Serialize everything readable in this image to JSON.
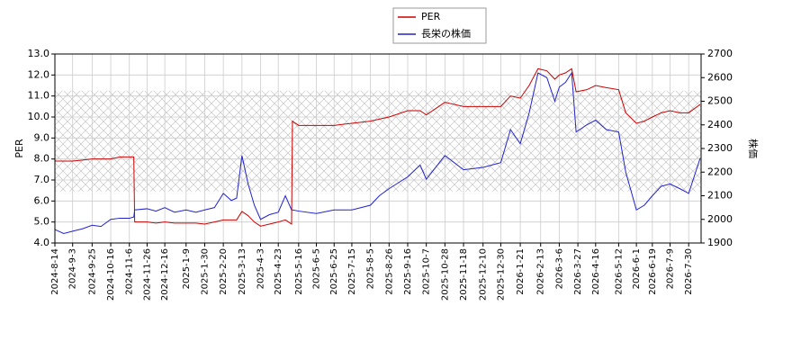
{
  "chart_data": {
    "type": "line",
    "legend": "upper center",
    "grid": true,
    "band": [
      6.45,
      11.25
    ],
    "ylabel": "PER",
    "y2label": "株価",
    "x": [
      "2024-08-14",
      "2024-08-24",
      "2024-09-03",
      "2024-09-14",
      "2024-09-25",
      "2024-10-05",
      "2024-10-16",
      "2024-10-26",
      "2024-11-06",
      "2024-11-11",
      "2024-11-12",
      "2024-11-26",
      "2024-12-06",
      "2024-12-16",
      "2024-12-27",
      "2025-01-09",
      "2025-01-20",
      "2025-01-30",
      "2025-02-10",
      "2025-02-20",
      "2025-03-01",
      "2025-03-07",
      "2025-03-13",
      "2025-03-20",
      "2025-03-27",
      "2025-04-03",
      "2025-04-13",
      "2025-04-23",
      "2025-05-01",
      "2025-05-08",
      "2025-05-09",
      "2025-05-16",
      "2025-06-05",
      "2025-06-25",
      "2025-07-15",
      "2025-08-05",
      "2025-08-15",
      "2025-08-26",
      "2025-09-16",
      "2025-09-30",
      "2025-10-07",
      "2025-10-28",
      "2025-11-18",
      "2025-12-10",
      "2025-12-30",
      "2026-01-10",
      "2026-01-21",
      "2026-01-31",
      "2026-02-10",
      "2026-02-20",
      "2026-03-01",
      "2026-03-06",
      "2026-03-13",
      "2026-03-20",
      "2026-03-25",
      "2026-04-06",
      "2026-04-16",
      "2026-04-28",
      "2026-05-12",
      "2026-05-20",
      "2026-06-01",
      "2026-06-10",
      "2026-06-19",
      "2026-06-29",
      "2026-07-09",
      "2026-07-20",
      "2026-07-30",
      "2026-08-12"
    ],
    "series": [
      {
        "name": "PER",
        "color": "#cc0000",
        "values": [
          7.9,
          7.9,
          7.9,
          7.95,
          8.0,
          8.0,
          8.0,
          8.1,
          8.1,
          8.1,
          5.0,
          5.0,
          4.95,
          5.0,
          4.95,
          4.95,
          4.95,
          4.9,
          5.0,
          5.1,
          5.1,
          5.1,
          5.5,
          5.3,
          5.0,
          4.8,
          4.9,
          5.0,
          5.1,
          4.9,
          9.8,
          9.6,
          9.6,
          9.6,
          9.7,
          9.8,
          9.9,
          10.0,
          10.3,
          10.3,
          10.1,
          10.7,
          10.5,
          10.5,
          10.5,
          11.0,
          10.9,
          11.5,
          12.3,
          12.2,
          11.8,
          12.0,
          12.1,
          12.3,
          11.2,
          11.3,
          11.5,
          11.4,
          11.3,
          10.2,
          9.7,
          9.8,
          10.0,
          10.2,
          10.3,
          10.2,
          10.2,
          10.6
        ]
      },
      {
        "name": "長栄の株価",
        "color": "#2222cc",
        "axis": "y2",
        "values": [
          1957,
          1940,
          1950,
          1960,
          1975,
          1970,
          2000,
          2005,
          2005,
          2010,
          2040,
          2045,
          2035,
          2050,
          2030,
          2040,
          2030,
          2040,
          2050,
          2110,
          2080,
          2090,
          2270,
          2150,
          2060,
          2000,
          2020,
          2030,
          2100,
          2040,
          2040,
          2035,
          2025,
          2040,
          2040,
          2060,
          2100,
          2130,
          2180,
          2230,
          2170,
          2270,
          2210,
          2220,
          2240,
          2380,
          2320,
          2450,
          2620,
          2600,
          2500,
          2560,
          2580,
          2620,
          2370,
          2400,
          2420,
          2380,
          2370,
          2200,
          2040,
          2060,
          2100,
          2140,
          2150,
          2130,
          2110,
          2260
        ]
      }
    ],
    "xlim": [
      "2024-08-14",
      "2026-08-13"
    ],
    "xticks": [
      {
        "value": "2024-08-14",
        "label": "2024-8-14"
      },
      {
        "value": "2024-09-03",
        "label": "2024-9-3"
      },
      {
        "value": "2024-09-25",
        "label": "2024-9-25"
      },
      {
        "value": "2024-10-16",
        "label": "2024-10-16"
      },
      {
        "value": "2024-11-06",
        "label": "2024-11-6"
      },
      {
        "value": "2024-11-26",
        "label": "2024-11-26"
      },
      {
        "value": "2024-12-16",
        "label": "2024-12-16"
      },
      {
        "value": "2025-01-09",
        "label": "2025-1-9"
      },
      {
        "value": "2025-01-30",
        "label": "2025-1-30"
      },
      {
        "value": "2025-02-20",
        "label": "2025-2-20"
      },
      {
        "value": "2025-03-13",
        "label": "2025-3-13"
      },
      {
        "value": "2025-04-03",
        "label": "2025-4-3"
      },
      {
        "value": "2025-04-23",
        "label": "2025-4-23"
      },
      {
        "value": "2025-05-16",
        "label": "2025-5-16"
      },
      {
        "value": "2025-06-05",
        "label": "2025-6-5"
      },
      {
        "value": "2025-06-25",
        "label": "2025-6-25"
      },
      {
        "value": "2025-07-15",
        "label": "2025-7-15"
      },
      {
        "value": "2025-08-05",
        "label": "2025-8-5"
      },
      {
        "value": "2025-08-26",
        "label": "2025-8-26"
      },
      {
        "value": "2025-09-16",
        "label": "2025-9-16"
      },
      {
        "value": "2025-10-07",
        "label": "2025-10-7"
      },
      {
        "value": "2025-10-28",
        "label": "2025-10-28"
      },
      {
        "value": "2025-11-18",
        "label": "2025-11-18"
      },
      {
        "value": "2025-12-10",
        "label": "2025-12-10"
      },
      {
        "value": "2025-12-30",
        "label": "2025-12-30"
      },
      {
        "value": "2026-01-21",
        "label": "2026-1-21"
      },
      {
        "value": "2026-02-13",
        "label": "2026-2-13"
      },
      {
        "value": "2026-03-06",
        "label": "2026-3-6"
      },
      {
        "value": "2026-03-27",
        "label": "2026-3-27"
      },
      {
        "value": "2026-04-16",
        "label": "2026-4-16"
      },
      {
        "value": "2026-05-12",
        "label": "2026-5-12"
      },
      {
        "value": "2026-06-01",
        "label": "2026-6-1"
      },
      {
        "value": "2026-06-19",
        "label": "2026-6-19"
      },
      {
        "value": "2026-07-09",
        "label": "2026-7-9"
      },
      {
        "value": "2026-07-30",
        "label": "2026-7-30"
      }
    ],
    "ylim": [
      4.0,
      13.0
    ],
    "yticks": [
      {
        "value": 4,
        "label": "4.0"
      },
      {
        "value": 5,
        "label": "5.0"
      },
      {
        "value": 6,
        "label": "6.0"
      },
      {
        "value": 7,
        "label": "7.0"
      },
      {
        "value": 8,
        "label": "8.0"
      },
      {
        "value": 9,
        "label": "9.0"
      },
      {
        "value": 10,
        "label": "10.0"
      },
      {
        "value": 11,
        "label": "11.0"
      },
      {
        "value": 12,
        "label": "12.0"
      },
      {
        "value": 13,
        "label": "13.0"
      }
    ],
    "y2lim": [
      1900,
      2700
    ],
    "y2ticks": [
      1900,
      2000,
      2100,
      2200,
      2300,
      2400,
      2500,
      2600,
      2700
    ]
  }
}
